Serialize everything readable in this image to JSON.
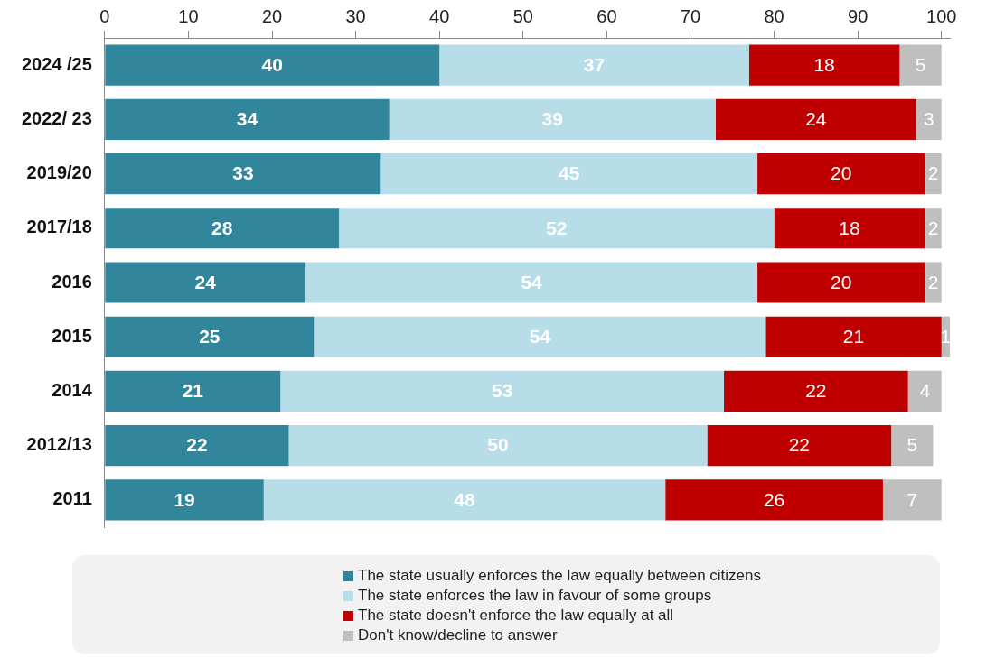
{
  "chart_data": {
    "type": "bar",
    "orientation": "horizontal",
    "stacked": true,
    "categories": [
      "2024 /25",
      "2022/ 23",
      "2019/20",
      "2017/18",
      "2016",
      "2015",
      "2014",
      "2012/13",
      "2011"
    ],
    "series": [
      {
        "name": "The state usually enforces the law equally between citizens",
        "color": "#31869b",
        "values": [
          40,
          34,
          33,
          28,
          24,
          25,
          21,
          22,
          19
        ]
      },
      {
        "name": "The state enforces the law in favour of some groups",
        "color": "#b7dee8",
        "values": [
          37,
          39,
          45,
          52,
          54,
          54,
          53,
          50,
          48
        ]
      },
      {
        "name": "The state doesn't enforce the law equally at all",
        "color": "#c00000",
        "values": [
          18,
          24,
          20,
          18,
          20,
          21,
          22,
          22,
          26
        ]
      },
      {
        "name": "Don't know/decline to answer",
        "color": "#bfbfbf",
        "values": [
          5,
          3,
          2,
          2,
          2,
          1,
          4,
          5,
          7
        ]
      }
    ],
    "xlim": [
      0,
      101
    ],
    "xticks": [
      0,
      10,
      20,
      30,
      40,
      50,
      60,
      70,
      80,
      90,
      100
    ],
    "grid": false,
    "legend": "bottom",
    "data_labels": true
  }
}
